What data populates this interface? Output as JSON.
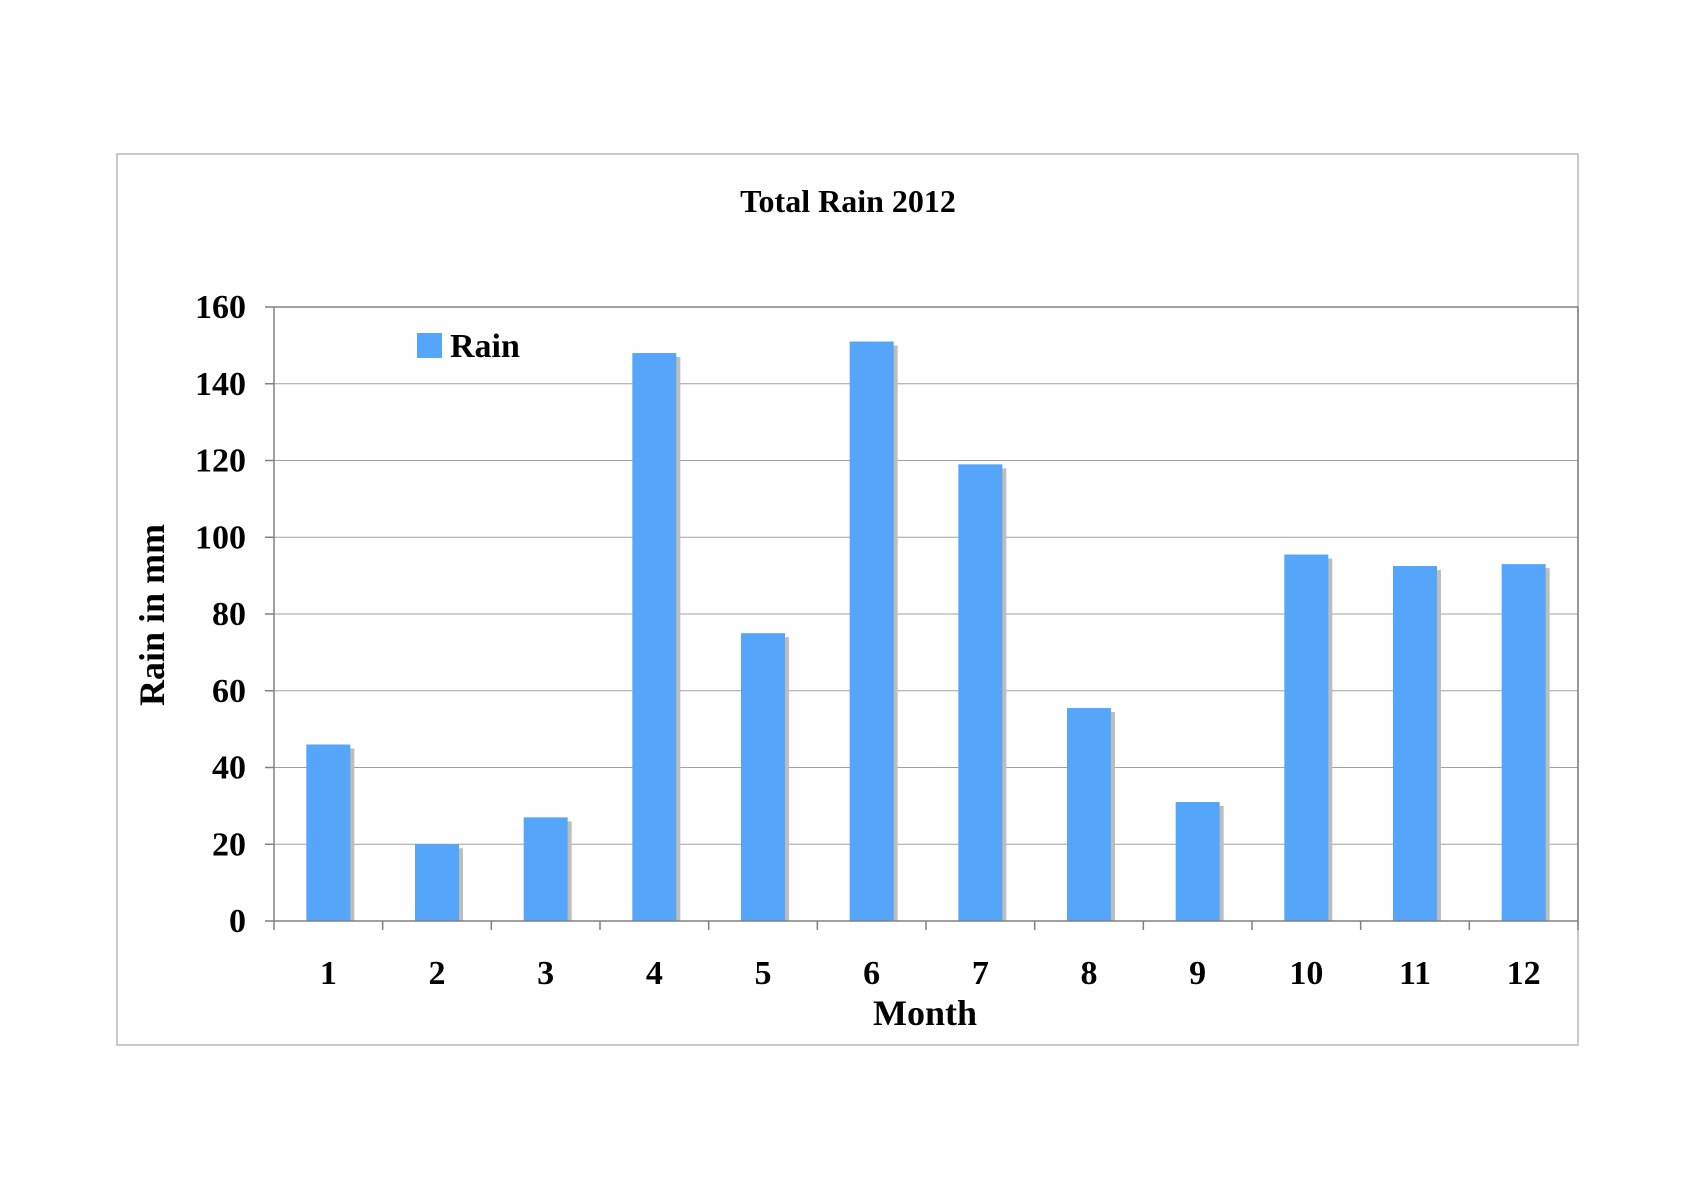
{
  "chart_data": {
    "type": "bar",
    "title": "Total Rain 2012",
    "xlabel": "Month",
    "ylabel": "Rain in mm",
    "categories": [
      "1",
      "2",
      "3",
      "4",
      "5",
      "6",
      "7",
      "8",
      "9",
      "10",
      "11",
      "12"
    ],
    "series": [
      {
        "name": "Rain",
        "color": "#55a6fb",
        "values": [
          46,
          20,
          27,
          148,
          75,
          151,
          119,
          55.5,
          31,
          95.5,
          92.5,
          93
        ]
      }
    ],
    "ylim": [
      0,
      160
    ],
    "yticks": [
      "0",
      "20",
      "40",
      "60",
      "80",
      "100",
      "120",
      "140",
      "160"
    ],
    "grid": true,
    "legend_position": "top-left"
  }
}
